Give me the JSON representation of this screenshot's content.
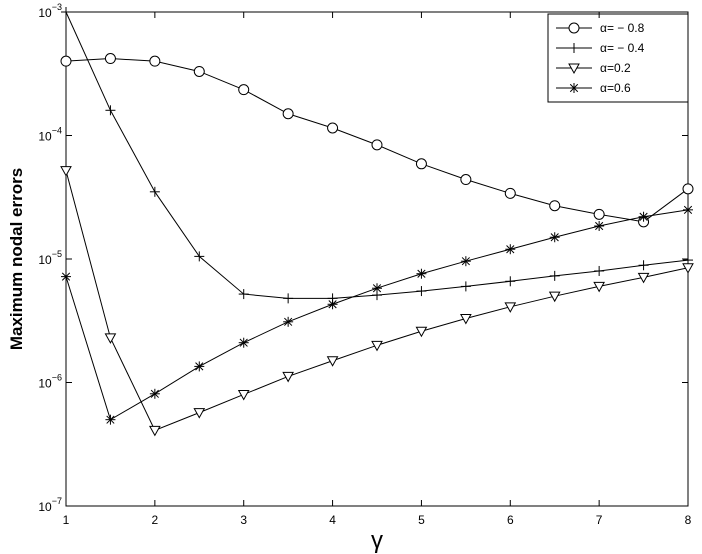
{
  "chart_data": {
    "type": "line",
    "xlabel": "γ",
    "ylabel": "Maximum nodal errors",
    "x": [
      1,
      1.5,
      2,
      2.5,
      3,
      3.5,
      4,
      4.5,
      5,
      5.5,
      6,
      6.5,
      7,
      7.5,
      8
    ],
    "xlim": [
      1,
      8
    ],
    "xticks": [
      1,
      2,
      3,
      4,
      5,
      6,
      7,
      8
    ],
    "ylim": [
      1e-07,
      0.001
    ],
    "log_y": true,
    "yticks": [
      {
        "value": 1e-07,
        "label": "10",
        "exponent": "−7"
      },
      {
        "value": 1e-06,
        "label": "10",
        "exponent": "−6"
      },
      {
        "value": 1e-05,
        "label": "10",
        "exponent": "−5"
      },
      {
        "value": 0.0001,
        "label": "10",
        "exponent": "−4"
      },
      {
        "value": 0.001,
        "label": "10",
        "exponent": "−3"
      }
    ],
    "legend": "upper right",
    "series": [
      {
        "name": "α= − 0.8",
        "color": "#000000",
        "marker": "circle",
        "values": [
          0.0004,
          0.00042,
          0.0004,
          0.00033,
          0.000235,
          0.00015,
          0.000115,
          8.4e-05,
          5.9e-05,
          4.4e-05,
          3.4e-05,
          2.7e-05,
          2.3e-05,
          2e-05,
          3.7e-05
        ]
      },
      {
        "name": "α= − 0.4",
        "color": "#000000",
        "marker": "plus",
        "values": [
          0.001,
          0.00016,
          3.5e-05,
          1.05e-05,
          5.2e-06,
          4.8e-06,
          4.8e-06,
          5.1e-06,
          5.5e-06,
          6e-06,
          6.6e-06,
          7.3e-06,
          8e-06,
          8.9e-06,
          9.8e-06
        ]
      },
      {
        "name": "α=0.2",
        "color": "#000000",
        "marker": "triangle-down",
        "values": [
          5.2e-05,
          2.3e-06,
          4.1e-07,
          5.7e-07,
          8e-07,
          1.12e-06,
          1.5e-06,
          2e-06,
          2.6e-06,
          3.3e-06,
          4.1e-06,
          5e-06,
          6e-06,
          7.1e-06,
          8.5e-06
        ]
      },
      {
        "name": "α=0.6",
        "color": "#000000",
        "marker": "star",
        "values": [
          7.2e-06,
          5e-07,
          8.1e-07,
          1.35e-06,
          2.1e-06,
          3.1e-06,
          4.3e-06,
          5.8e-06,
          7.6e-06,
          9.6e-06,
          1.2e-05,
          1.5e-05,
          1.85e-05,
          2.2e-05,
          2.5e-05
        ]
      }
    ]
  }
}
